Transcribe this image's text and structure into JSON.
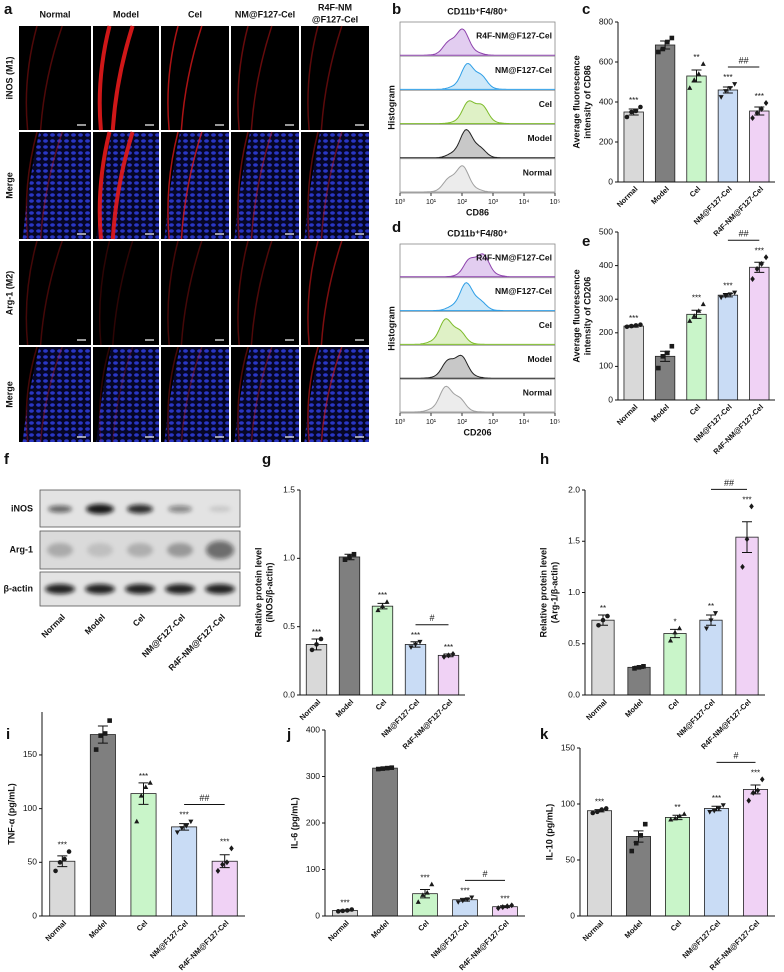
{
  "images": {
    "label": "a",
    "columns": [
      [
        "Normal"
      ],
      [
        "Model"
      ],
      [
        "Cel"
      ],
      [
        "NM@F127-Cel"
      ],
      [
        "R4F-NM",
        "@F127-Cel"
      ]
    ],
    "rows": [
      "iNOS (M1)",
      "Merge",
      "Arg-1 (M2)",
      "Merge"
    ]
  },
  "flow": [
    {
      "label": "b",
      "title": "CD11b⁺F4/80⁺",
      "x_label": "CD86",
      "y_label": "Histogram",
      "xlim": [
        0,
        5
      ],
      "xticks": [
        {
          "value": 0,
          "label": "10⁰"
        },
        {
          "value": 1,
          "label": "10¹"
        },
        {
          "value": 2,
          "label": "10²"
        },
        {
          "value": 3,
          "label": "10³"
        },
        {
          "value": 4,
          "label": "10⁴"
        },
        {
          "value": 5,
          "label": "10⁵"
        }
      ],
      "series": [
        {
          "name": "R4F-NM@F127-Cel",
          "color": "#8e44ad",
          "fill": "#e2cdf0",
          "peak": 1.9
        },
        {
          "name": "NM@F127-Cel",
          "color": "#2e9ee6",
          "fill": "#cde8f9",
          "peak": 2.3
        },
        {
          "name": "Cel",
          "color": "#7dbb2a",
          "fill": "#dff1c6",
          "peak": 2.4
        },
        {
          "name": "Model",
          "color": "#222222",
          "fill": "#c8c8c8",
          "peak": 2.2
        },
        {
          "name": "Normal",
          "color": "#a0a0a0",
          "fill": "#ececec",
          "peak": 1.9
        }
      ]
    },
    {
      "label": "d",
      "title": "CD11b⁺F4/80⁺",
      "x_label": "CD206",
      "y_label": "Histogram",
      "xlim": [
        0,
        5
      ],
      "xticks": [
        {
          "value": 0,
          "label": "10⁰"
        },
        {
          "value": 1,
          "label": "10¹"
        },
        {
          "value": 2,
          "label": "10²"
        },
        {
          "value": 3,
          "label": "10³"
        },
        {
          "value": 4,
          "label": "10⁴"
        },
        {
          "value": 5,
          "label": "10⁵"
        }
      ],
      "series": [
        {
          "name": "R4F-NM@F127-Cel",
          "color": "#8e44ad",
          "fill": "#e2cdf0",
          "peak": 2.5
        },
        {
          "name": "NM@F127-Cel",
          "color": "#2e9ee6",
          "fill": "#cde8f9",
          "peak": 2.2
        },
        {
          "name": "Cel",
          "color": "#7dbb2a",
          "fill": "#dff1c6",
          "peak": 1.6
        },
        {
          "name": "Model",
          "color": "#222222",
          "fill": "#c8c8c8",
          "peak": 1.8
        },
        {
          "name": "Normal",
          "color": "#a0a0a0",
          "fill": "#ececec",
          "peak": 1.6
        }
      ]
    }
  ],
  "blot": {
    "label": "f",
    "bands": [
      "iNOS",
      "Arg-1",
      "β-actin"
    ],
    "categories": [
      "Normal",
      "Model",
      "Cel",
      "NM@F127-Cel",
      "R4F-NM@F127-Cel"
    ]
  },
  "chart_data": [
    {
      "type": "bar",
      "label": "c",
      "y_label": [
        "Average fluorescence",
        "intensity of CD86"
      ],
      "categories": [
        "Normal",
        "Model",
        "Cel",
        "NM@F127-Cel",
        "R4F-NM@F127-Cel"
      ],
      "colors": [
        "#d9d9d9",
        "#7f7f7f",
        "#c9f5c9",
        "#c9dcf5",
        "#f0d2f5"
      ],
      "values": [
        350,
        685,
        530,
        460,
        355
      ],
      "errors": [
        15,
        20,
        30,
        15,
        20
      ],
      "points": [
        [
          325,
          350,
          355,
          375
        ],
        [
          650,
          665,
          700,
          720
        ],
        [
          470,
          510,
          540,
          590
        ],
        [
          425,
          455,
          470,
          490
        ],
        [
          320,
          345,
          365,
          395
        ]
      ],
      "significance": [
        "***",
        null,
        "**",
        "***",
        "***"
      ],
      "bracket": {
        "between": [
          3,
          4
        ],
        "label": "##"
      },
      "ylim": [
        0,
        800
      ],
      "yticks": [
        0,
        200,
        400,
        600,
        800
      ]
    },
    {
      "type": "bar",
      "label": "e",
      "y_label": [
        "Average fluorescence",
        "intensity of CD206"
      ],
      "categories": [
        "Normal",
        "Model",
        "Cel",
        "NM@F127-Cel",
        "R4F-NM@F127-Cel"
      ],
      "colors": [
        "#d9d9d9",
        "#7f7f7f",
        "#c9f5c9",
        "#c9dcf5",
        "#f0d2f5"
      ],
      "values": [
        220,
        130,
        255,
        312,
        395
      ],
      "errors": [
        3,
        15,
        12,
        5,
        15
      ],
      "points": [
        [
          218,
          220,
          222,
          224
        ],
        [
          95,
          130,
          140,
          160
        ],
        [
          235,
          250,
          265,
          285
        ],
        [
          305,
          310,
          315,
          320
        ],
        [
          360,
          390,
          405,
          425
        ]
      ],
      "significance": [
        "***",
        null,
        "***",
        "***",
        "***"
      ],
      "bracket": {
        "between": [
          3,
          4
        ],
        "label": "##"
      },
      "ylim": [
        0,
        500
      ],
      "yticks": [
        0,
        100,
        200,
        300,
        400,
        500
      ]
    },
    {
      "type": "bar",
      "label": "g",
      "y_label": [
        "Relative protein level",
        "(iNOS/β-actin)"
      ],
      "categories": [
        "Normal",
        "Model",
        "Cel",
        "NM@F127-Cel",
        "R4F-NM@F127-Cel"
      ],
      "colors": [
        "#d9d9d9",
        "#7f7f7f",
        "#c9f5c9",
        "#c9dcf5",
        "#f0d2f5"
      ],
      "values": [
        0.37,
        1.01,
        0.65,
        0.37,
        0.29
      ],
      "errors": [
        0.04,
        0.02,
        0.02,
        0.02,
        0.01
      ],
      "points": [
        [
          0.33,
          0.37,
          0.41
        ],
        [
          0.99,
          1.01,
          1.03
        ],
        [
          0.62,
          0.65,
          0.68
        ],
        [
          0.35,
          0.37,
          0.39
        ],
        [
          0.28,
          0.29,
          0.3
        ]
      ],
      "significance": [
        "***",
        null,
        "***",
        "***",
        "***"
      ],
      "bracket": {
        "between": [
          3,
          4
        ],
        "label": "#"
      },
      "ylim": [
        0,
        1.5
      ],
      "yticks": [
        {
          "value": 0,
          "label": "0.0"
        },
        0.5,
        {
          "value": 1,
          "label": "1.0"
        },
        1.5
      ]
    },
    {
      "type": "bar",
      "label": "h",
      "y_label": [
        "Relative protein level",
        "(Arg-1/β-actin)"
      ],
      "categories": [
        "Normal",
        "Model",
        "Cel",
        "NM@F127-Cel",
        "R4F-NM@F127-Cel"
      ],
      "colors": [
        "#d9d9d9",
        "#7f7f7f",
        "#c9f5c9",
        "#c9dcf5",
        "#f0d2f5"
      ],
      "values": [
        0.73,
        0.27,
        0.6,
        0.73,
        1.54
      ],
      "errors": [
        0.05,
        0.01,
        0.04,
        0.05,
        0.15
      ],
      "points": [
        [
          0.68,
          0.73,
          0.77
        ],
        [
          0.26,
          0.27,
          0.28
        ],
        [
          0.53,
          0.61,
          0.65
        ],
        [
          0.65,
          0.73,
          0.8
        ],
        [
          1.25,
          1.52,
          1.84
        ]
      ],
      "significance": [
        "**",
        null,
        "*",
        "**",
        "***"
      ],
      "bracket": {
        "between": [
          3,
          4
        ],
        "label": "##"
      },
      "ylim": [
        0,
        2
      ],
      "yticks": [
        {
          "value": 0,
          "label": "0.0"
        },
        0.5,
        {
          "value": 1,
          "label": "1.0"
        },
        1.5,
        {
          "value": 2,
          "label": "2.0"
        }
      ]
    },
    {
      "type": "bar",
      "label": "i",
      "y_label": [
        "TNF-α (pg/mL)"
      ],
      "categories": [
        "Normal",
        "Model",
        "Cel",
        "NM@F127-Cel",
        "R4F-NM@F127-Cel"
      ],
      "colors": [
        "#d9d9d9",
        "#7f7f7f",
        "#c9f5c9",
        "#c9dcf5",
        "#f0d2f5"
      ],
      "values": [
        51,
        169,
        114,
        83,
        51
      ],
      "errors": [
        5,
        8,
        10,
        3,
        6
      ],
      "points": [
        [
          42,
          50,
          53,
          60
        ],
        [
          155,
          168,
          170,
          182
        ],
        [
          88,
          112,
          120,
          124
        ],
        [
          78,
          82,
          84,
          88
        ],
        [
          42,
          48,
          50,
          63
        ]
      ],
      "significance": [
        "***",
        null,
        "***",
        "***",
        "***"
      ],
      "bracket": {
        "between": [
          3,
          4
        ],
        "label": "##"
      },
      "ylim": [
        0,
        190
      ],
      "yticks": [
        0,
        50,
        100,
        150
      ]
    },
    {
      "type": "bar",
      "label": "j",
      "y_label": [
        "IL-6 (pg/mL)"
      ],
      "categories": [
        "Normal",
        "Model",
        "Cel",
        "NM@F127-Cel",
        "R4F-NM@F127-Cel"
      ],
      "colors": [
        "#d9d9d9",
        "#7f7f7f",
        "#c9f5c9",
        "#c9dcf5",
        "#f0d2f5"
      ],
      "values": [
        12,
        318,
        48,
        35,
        20
      ],
      "errors": [
        1,
        1,
        9,
        3,
        2
      ],
      "points": [
        [
          10,
          11,
          12,
          14
        ],
        [
          316,
          317,
          318,
          319
        ],
        [
          30,
          45,
          50,
          68
        ],
        [
          30,
          33,
          36,
          40
        ],
        [
          17,
          19,
          21,
          23
        ]
      ],
      "significance": [
        "***",
        null,
        "***",
        "***",
        "***"
      ],
      "bracket": {
        "between": [
          3,
          4
        ],
        "label": "#"
      },
      "ylim": [
        0,
        400
      ],
      "yticks": [
        0,
        100,
        200,
        300,
        400
      ]
    },
    {
      "type": "bar",
      "label": "k",
      "y_label": [
        "IL-10 (pg/mL)"
      ],
      "categories": [
        "Normal",
        "Model",
        "Cel",
        "NM@F127-Cel",
        "R4F-NM@F127-Cel"
      ],
      "colors": [
        "#d9d9d9",
        "#7f7f7f",
        "#c9f5c9",
        "#c9dcf5",
        "#f0d2f5"
      ],
      "values": [
        94,
        71,
        88,
        96,
        113
      ],
      "errors": [
        1,
        5,
        2,
        2,
        4
      ],
      "points": [
        [
          92,
          93,
          95,
          96
        ],
        [
          58,
          65,
          72,
          82
        ],
        [
          86,
          87,
          89,
          91
        ],
        [
          93,
          94,
          96,
          99
        ],
        [
          103,
          110,
          112,
          122
        ]
      ],
      "significance": [
        "***",
        null,
        "**",
        "***",
        "***"
      ],
      "bracket": {
        "between": [
          3,
          4
        ],
        "label": "#"
      },
      "ylim": [
        0,
        150
      ],
      "yticks": [
        0,
        50,
        100,
        150
      ]
    }
  ]
}
